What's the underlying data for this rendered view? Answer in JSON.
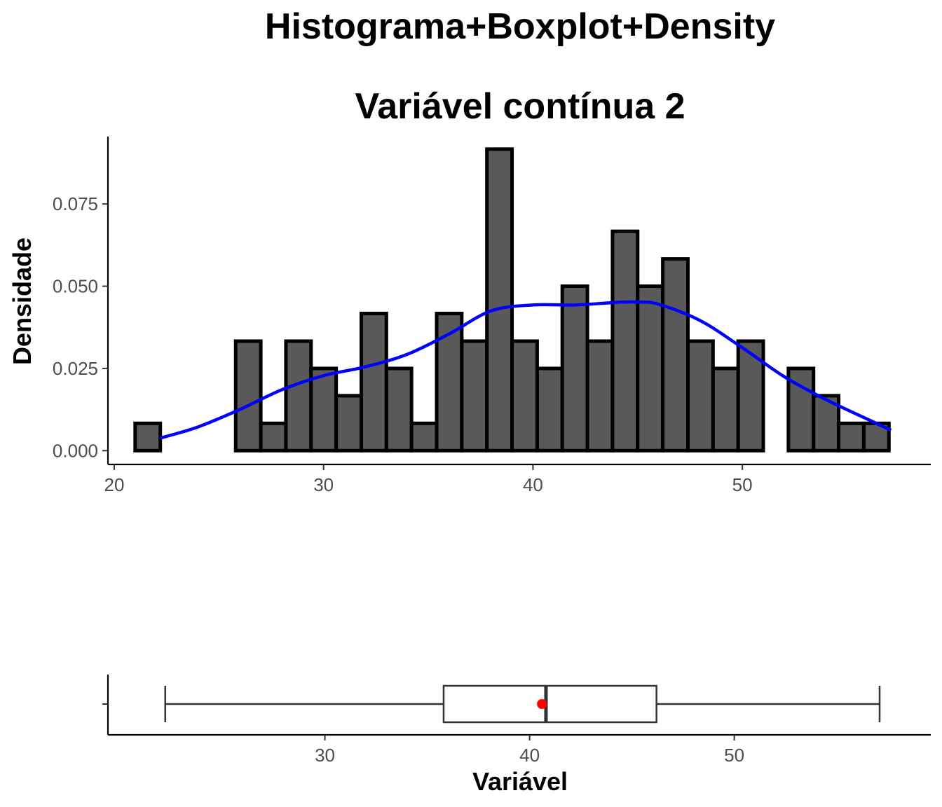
{
  "chart_data": [
    {
      "type": "histogram",
      "title": "Histograma+Boxplot+Density",
      "subtitle": "Variável contínua 2",
      "ylabel": "Densidade",
      "xlim": [
        19.7,
        59.0
      ],
      "ylim": [
        -0.0042,
        0.0955
      ],
      "x_ticks": [
        20,
        30,
        40,
        50
      ],
      "y_ticks": [
        0.0,
        0.025,
        0.05,
        0.075
      ],
      "y_tick_labels": [
        "0.000",
        "0.025",
        "0.050",
        "0.075"
      ],
      "bin_start": 21.0,
      "bin_width": 1.2,
      "values": [
        0.0083,
        0.0,
        0.0,
        0.0,
        0.0333,
        0.0083,
        0.0333,
        0.025,
        0.0167,
        0.0417,
        0.025,
        0.0083,
        0.0417,
        0.0333,
        0.0917,
        0.0333,
        0.025,
        0.05,
        0.0333,
        0.0667,
        0.05,
        0.0583,
        0.0333,
        0.025,
        0.0333,
        0.0,
        0.025,
        0.0167,
        0.0083,
        0.0083
      ],
      "bar_fill": "#595959",
      "bar_border": "#000000",
      "density": {
        "color": "#0000ff",
        "x": [
          22.2,
          24,
          26,
          28,
          30,
          32,
          34,
          36,
          38,
          40,
          42,
          44,
          45,
          46,
          48,
          50,
          52,
          54,
          56,
          57.1
        ],
        "y": [
          0.0038,
          0.0072,
          0.0125,
          0.0185,
          0.0228,
          0.0255,
          0.0293,
          0.0355,
          0.0425,
          0.0443,
          0.0443,
          0.0451,
          0.0452,
          0.0445,
          0.0395,
          0.0313,
          0.0225,
          0.0155,
          0.0095,
          0.0062
        ]
      }
    },
    {
      "type": "boxplot",
      "xlabel": "Variável",
      "xlim": [
        19.4,
        59.6
      ],
      "x_ticks": [
        30,
        40,
        50
      ],
      "whisker_low": 22.2,
      "q1": 35.8,
      "median": 40.8,
      "q3": 46.2,
      "whisker_high": 57.1,
      "mean": 40.6,
      "mean_color": "#ff0000"
    }
  ]
}
